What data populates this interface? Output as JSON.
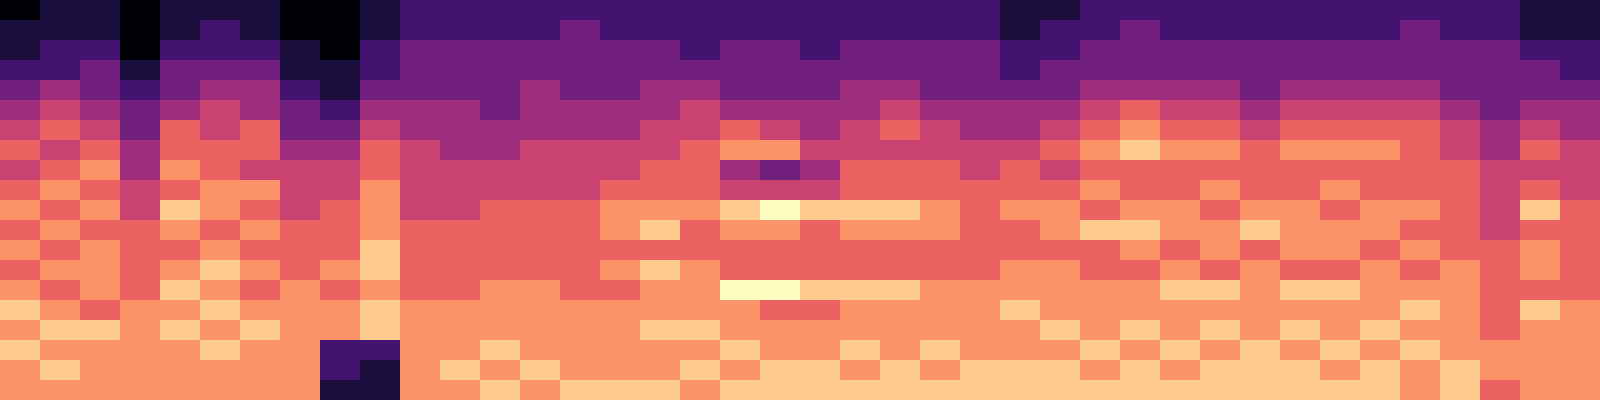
{
  "chart_data": {
    "type": "heatmap",
    "tick_labels": false,
    "zlim": [
      0,
      9
    ],
    "cells": [
      [
        0,
        1,
        1,
        0,
        1,
        1,
        1,
        0,
        0,
        1,
        2,
        2,
        2,
        2,
        2,
        2,
        2,
        2,
        2,
        2,
        2,
        2,
        2,
        2,
        2,
        1,
        1,
        2,
        2,
        2,
        2,
        2,
        2,
        2,
        2,
        2,
        2,
        2,
        1,
        1
      ],
      [
        1,
        1,
        1,
        0,
        1,
        2,
        1,
        0,
        0,
        1,
        2,
        2,
        2,
        2,
        3,
        2,
        2,
        2,
        2,
        2,
        2,
        2,
        2,
        2,
        2,
        1,
        2,
        2,
        3,
        2,
        2,
        2,
        2,
        2,
        2,
        3,
        2,
        2,
        1,
        1
      ],
      [
        1,
        2,
        2,
        0,
        2,
        2,
        2,
        1,
        0,
        2,
        3,
        3,
        3,
        3,
        3,
        3,
        3,
        2,
        3,
        3,
        2,
        3,
        3,
        3,
        3,
        2,
        2,
        3,
        3,
        3,
        3,
        3,
        3,
        3,
        3,
        3,
        3,
        3,
        2,
        2
      ],
      [
        2,
        2,
        3,
        1,
        3,
        3,
        3,
        1,
        1,
        2,
        3,
        3,
        3,
        3,
        3,
        3,
        3,
        3,
        3,
        3,
        3,
        3,
        3,
        3,
        3,
        2,
        3,
        3,
        3,
        3,
        3,
        3,
        3,
        3,
        3,
        3,
        3,
        3,
        3,
        2
      ],
      [
        3,
        4,
        3,
        2,
        3,
        4,
        4,
        2,
        1,
        3,
        3,
        3,
        3,
        4,
        3,
        3,
        4,
        4,
        3,
        3,
        3,
        4,
        4,
        3,
        3,
        3,
        3,
        4,
        4,
        4,
        4,
        3,
        4,
        4,
        4,
        4,
        3,
        3,
        3,
        3
      ],
      [
        4,
        5,
        4,
        3,
        4,
        5,
        4,
        3,
        2,
        4,
        4,
        4,
        3,
        4,
        4,
        4,
        4,
        5,
        4,
        4,
        4,
        4,
        5,
        4,
        4,
        4,
        4,
        5,
        6,
        5,
        5,
        4,
        5,
        5,
        5,
        5,
        4,
        3,
        4,
        4
      ],
      [
        5,
        6,
        5,
        3,
        6,
        5,
        6,
        3,
        3,
        5,
        4,
        4,
        4,
        4,
        4,
        4,
        5,
        5,
        6,
        5,
        4,
        5,
        6,
        5,
        4,
        4,
        5,
        6,
        7,
        6,
        6,
        5,
        6,
        6,
        6,
        6,
        5,
        4,
        5,
        4
      ],
      [
        6,
        5,
        6,
        4,
        6,
        6,
        6,
        4,
        4,
        6,
        5,
        4,
        4,
        5,
        5,
        5,
        5,
        6,
        7,
        7,
        5,
        5,
        5,
        5,
        5,
        5,
        6,
        7,
        8,
        7,
        7,
        6,
        7,
        7,
        7,
        6,
        5,
        4,
        6,
        5
      ],
      [
        5,
        6,
        7,
        4,
        7,
        6,
        5,
        5,
        5,
        6,
        5,
        5,
        5,
        5,
        5,
        5,
        6,
        6,
        4,
        3,
        4,
        6,
        6,
        6,
        5,
        6,
        5,
        6,
        6,
        6,
        6,
        6,
        6,
        6,
        6,
        6,
        6,
        5,
        5,
        5
      ],
      [
        6,
        7,
        6,
        5,
        6,
        7,
        7,
        5,
        5,
        7,
        5,
        5,
        5,
        5,
        5,
        6,
        6,
        6,
        5,
        5,
        5,
        6,
        6,
        6,
        6,
        6,
        6,
        7,
        6,
        6,
        7,
        6,
        6,
        7,
        6,
        6,
        6,
        5,
        6,
        5
      ],
      [
        7,
        6,
        7,
        5,
        8,
        7,
        6,
        5,
        6,
        7,
        5,
        5,
        6,
        6,
        6,
        7,
        7,
        7,
        8,
        9,
        8,
        8,
        8,
        7,
        6,
        7,
        7,
        6,
        7,
        7,
        6,
        7,
        7,
        6,
        7,
        7,
        6,
        5,
        8,
        6
      ],
      [
        6,
        7,
        6,
        6,
        7,
        6,
        7,
        6,
        6,
        7,
        6,
        6,
        6,
        6,
        6,
        7,
        8,
        6,
        7,
        7,
        6,
        7,
        7,
        7,
        6,
        6,
        7,
        8,
        8,
        7,
        7,
        8,
        7,
        7,
        7,
        6,
        6,
        5,
        6,
        6
      ],
      [
        7,
        6,
        7,
        6,
        6,
        7,
        6,
        6,
        6,
        8,
        6,
        6,
        6,
        6,
        6,
        6,
        6,
        6,
        6,
        6,
        6,
        6,
        6,
        6,
        6,
        6,
        6,
        6,
        7,
        6,
        7,
        6,
        7,
        7,
        6,
        7,
        6,
        6,
        7,
        6
      ],
      [
        6,
        7,
        7,
        6,
        7,
        8,
        7,
        6,
        7,
        8,
        6,
        6,
        6,
        6,
        6,
        7,
        8,
        7,
        6,
        6,
        6,
        6,
        6,
        6,
        6,
        7,
        7,
        6,
        6,
        7,
        6,
        7,
        6,
        6,
        7,
        6,
        7,
        6,
        7,
        6
      ],
      [
        7,
        6,
        7,
        6,
        8,
        7,
        6,
        7,
        6,
        7,
        6,
        6,
        7,
        7,
        6,
        6,
        7,
        7,
        9,
        9,
        8,
        8,
        8,
        7,
        7,
        7,
        7,
        7,
        7,
        8,
        8,
        7,
        8,
        8,
        7,
        7,
        7,
        6,
        6,
        6
      ],
      [
        8,
        7,
        6,
        7,
        7,
        8,
        7,
        7,
        7,
        8,
        7,
        7,
        7,
        7,
        7,
        7,
        7,
        7,
        7,
        6,
        6,
        7,
        7,
        7,
        7,
        8,
        7,
        7,
        7,
        7,
        7,
        7,
        7,
        7,
        7,
        8,
        7,
        6,
        8,
        7
      ],
      [
        7,
        8,
        8,
        7,
        8,
        7,
        8,
        7,
        7,
        8,
        7,
        7,
        7,
        7,
        7,
        7,
        8,
        8,
        7,
        7,
        7,
        7,
        7,
        7,
        7,
        7,
        8,
        7,
        8,
        7,
        8,
        7,
        8,
        7,
        8,
        7,
        7,
        6,
        7,
        7
      ],
      [
        8,
        7,
        7,
        7,
        7,
        8,
        7,
        7,
        2,
        2,
        7,
        7,
        8,
        7,
        7,
        7,
        7,
        7,
        8,
        7,
        7,
        8,
        7,
        8,
        7,
        7,
        7,
        8,
        7,
        8,
        7,
        8,
        7,
        8,
        7,
        8,
        7,
        7,
        7,
        7
      ],
      [
        7,
        8,
        7,
        7,
        7,
        7,
        7,
        7,
        2,
        1,
        7,
        8,
        7,
        8,
        7,
        7,
        7,
        8,
        7,
        8,
        8,
        7,
        8,
        7,
        8,
        8,
        8,
        7,
        8,
        7,
        8,
        8,
        8,
        7,
        8,
        7,
        8,
        7,
        7,
        7
      ],
      [
        7,
        7,
        7,
        7,
        7,
        7,
        7,
        7,
        1,
        1,
        7,
        7,
        8,
        7,
        8,
        8,
        8,
        7,
        8,
        8,
        8,
        8,
        8,
        8,
        8,
        8,
        8,
        8,
        8,
        8,
        8,
        8,
        8,
        8,
        8,
        7,
        8,
        6,
        7,
        7
      ]
    ]
  }
}
